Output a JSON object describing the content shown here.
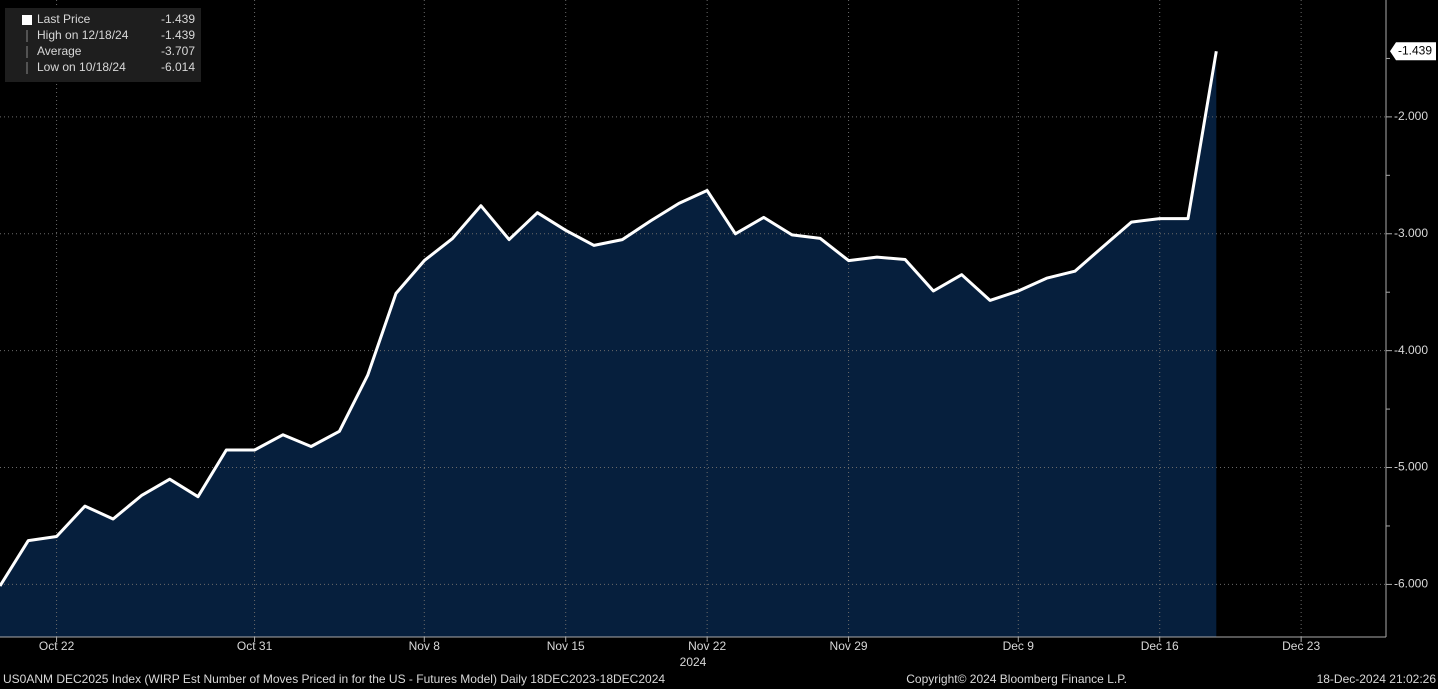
{
  "chart_data": {
    "type": "area",
    "legend": [
      {
        "label": "Last Price",
        "value": -1.439
      },
      {
        "label": "High on 12/18/24",
        "value": -1.439
      },
      {
        "label": "Average",
        "value": -3.707
      },
      {
        "label": "Low on 10/18/24",
        "value": -6.014
      }
    ],
    "x": [
      "2024-10-18",
      "2024-10-21",
      "2024-10-22",
      "2024-10-23",
      "2024-10-24",
      "2024-10-25",
      "2024-10-28",
      "2024-10-29",
      "2024-10-30",
      "2024-10-31",
      "2024-11-01",
      "2024-11-04",
      "2024-11-05",
      "2024-11-06",
      "2024-11-07",
      "2024-11-08",
      "2024-11-11",
      "2024-11-12",
      "2024-11-13",
      "2024-11-14",
      "2024-11-15",
      "2024-11-18",
      "2024-11-19",
      "2024-11-20",
      "2024-11-21",
      "2024-11-22",
      "2024-11-25",
      "2024-11-26",
      "2024-11-27",
      "2024-11-28",
      "2024-11-29",
      "2024-12-02",
      "2024-12-03",
      "2024-12-04",
      "2024-12-05",
      "2024-12-06",
      "2024-12-09",
      "2024-12-10",
      "2024-12-11",
      "2024-12-12",
      "2024-12-13",
      "2024-12-16",
      "2024-12-17",
      "2024-12-18"
    ],
    "series": [
      {
        "name": "Last Price",
        "color": "#ffffff",
        "fill": "#061f3d",
        "values": [
          -6.014,
          -5.625,
          -5.59,
          -5.33,
          -5.44,
          -5.24,
          -5.1,
          -5.25,
          -4.85,
          -4.85,
          -4.72,
          -4.82,
          -4.69,
          -4.21,
          -3.51,
          -3.23,
          -3.04,
          -2.76,
          -3.05,
          -2.82,
          -2.97,
          -3.1,
          -3.05,
          -2.89,
          -2.74,
          -2.63,
          -3.0,
          -2.86,
          -3.01,
          -3.04,
          -3.23,
          -3.2,
          -3.22,
          -3.49,
          -3.35,
          -3.57,
          -3.49,
          -3.38,
          -3.32,
          -3.11,
          -2.9,
          -2.87,
          -2.87,
          -1.439
        ]
      }
    ],
    "xlim": [
      "2024-10-18",
      "2024-12-26"
    ],
    "xticks": [
      {
        "value": "2024-10-22",
        "label": "Oct 22"
      },
      {
        "value": "2024-10-31",
        "label": "Oct 31"
      },
      {
        "value": "2024-11-08",
        "label": "Nov 8"
      },
      {
        "value": "2024-11-15",
        "label": "Nov 15"
      },
      {
        "value": "2024-11-22",
        "label": "Nov 22"
      },
      {
        "value": "2024-11-29",
        "label": "Nov 29"
      },
      {
        "value": "2024-12-09",
        "label": "Dec 9"
      },
      {
        "value": "2024-12-16",
        "label": "Dec 16"
      },
      {
        "value": "2024-12-23",
        "label": "Dec 23"
      }
    ],
    "year_label": "2024",
    "ylim": [
      -6.45,
      -1.0
    ],
    "yticks": [
      {
        "value": -2,
        "label": "-2.000"
      },
      {
        "value": -3,
        "label": "-3.000"
      },
      {
        "value": -4,
        "label": "-4.000"
      },
      {
        "value": -5,
        "label": "-5.000"
      },
      {
        "value": -6,
        "label": "-6.000"
      }
    ],
    "minor_yticks": [
      -1.5,
      -2.5,
      -3.5,
      -4.5,
      -5.5
    ],
    "grid": true,
    "footer": {
      "description": "US0ANM DEC2025 Index (WIRP Est Number of Moves Priced in for the US - Futures Model)  Daily 18DEC2023-18DEC2024",
      "copyright": "Copyright© 2024 Bloomberg Finance L.P.",
      "timestamp": "18-Dec-2024 21:02:26"
    }
  }
}
